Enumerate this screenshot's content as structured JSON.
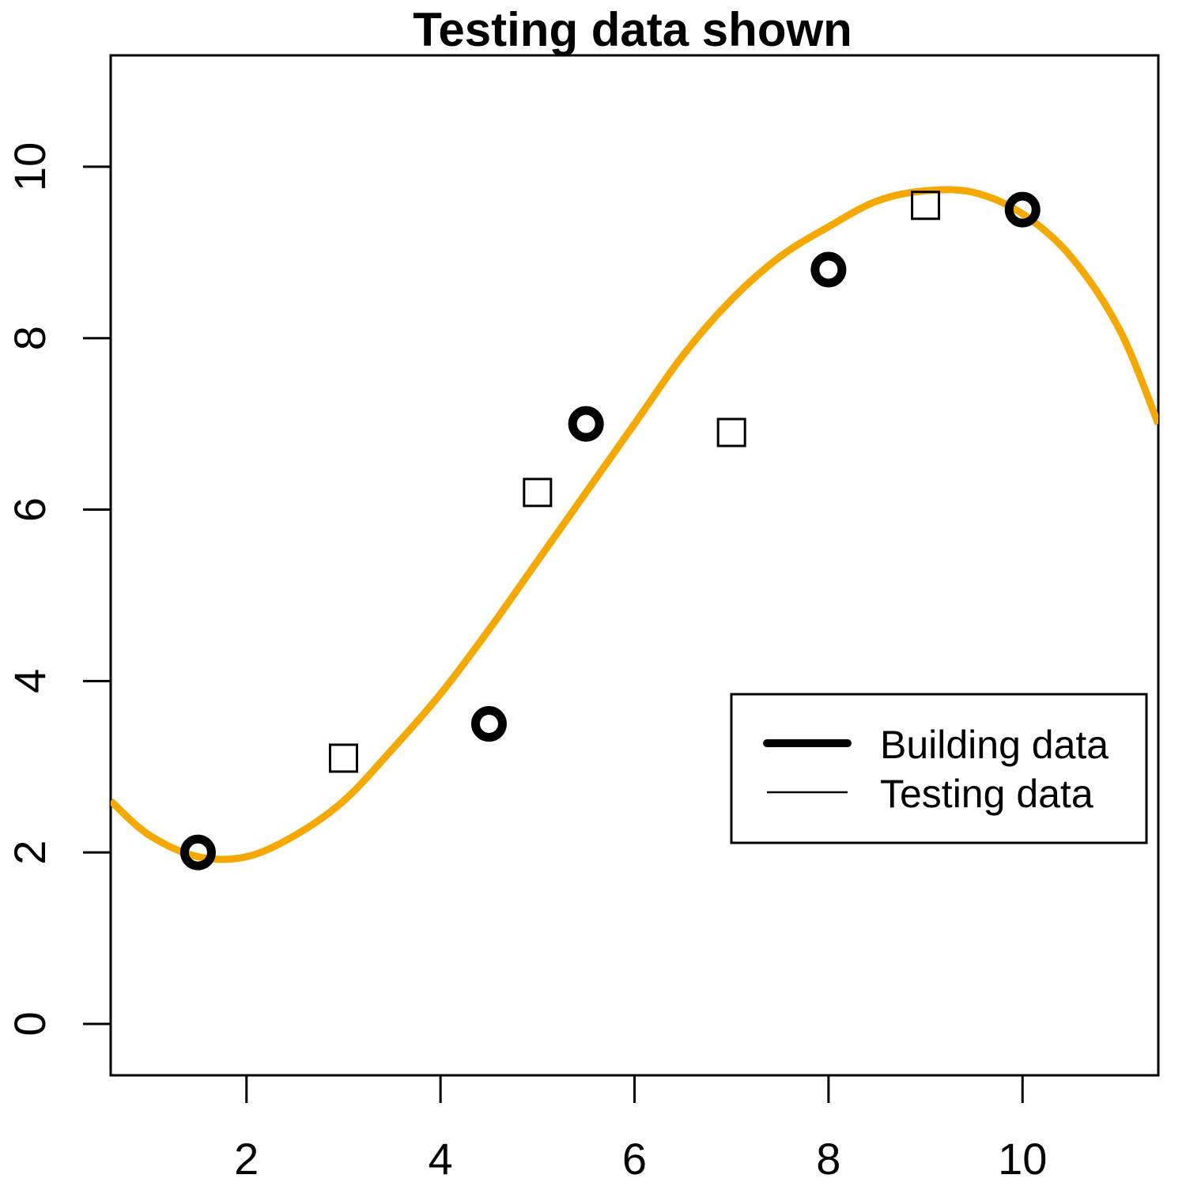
{
  "chart_data": {
    "type": "scatter",
    "title": "Testing data shown",
    "xlabel": "",
    "ylabel": "",
    "xlim": [
      0.6,
      11.4
    ],
    "ylim": [
      -0.6,
      11.3
    ],
    "x_ticks": [
      2,
      4,
      6,
      8,
      10
    ],
    "y_ticks": [
      0,
      2,
      4,
      6,
      8,
      10
    ],
    "grid": false,
    "legend": {
      "position": "right",
      "entries": [
        {
          "label": "Building data",
          "style": "thick-line"
        },
        {
          "label": "Testing data",
          "style": "thin-line"
        }
      ]
    },
    "series": [
      {
        "name": "Building data",
        "marker": "open-circle-thick",
        "color": "#000000",
        "points": [
          [
            1.5,
            2.0
          ],
          [
            4.5,
            3.5
          ],
          [
            5.5,
            7.0
          ],
          [
            8.0,
            8.8
          ],
          [
            10.0,
            9.5
          ]
        ]
      },
      {
        "name": "Testing data",
        "marker": "open-square",
        "color": "#000000",
        "points": [
          [
            3.0,
            3.1
          ],
          [
            5.0,
            6.2
          ],
          [
            7.0,
            6.9
          ],
          [
            9.0,
            9.55
          ]
        ]
      }
    ],
    "fitted_curve": {
      "color": "#F5A800",
      "x": [
        0.6,
        1.0,
        1.5,
        2.0,
        2.5,
        3.0,
        3.5,
        4.0,
        4.5,
        5.0,
        5.5,
        6.0,
        6.5,
        7.0,
        7.5,
        8.0,
        8.5,
        9.0,
        9.5,
        10.0,
        10.5,
        11.0,
        11.4
      ],
      "y": [
        2.6,
        2.2,
        1.95,
        1.95,
        2.2,
        2.6,
        3.2,
        3.85,
        4.6,
        5.4,
        6.2,
        7.0,
        7.8,
        8.45,
        8.95,
        9.3,
        9.6,
        9.72,
        9.7,
        9.45,
        8.95,
        8.1,
        7.0
      ]
    }
  }
}
